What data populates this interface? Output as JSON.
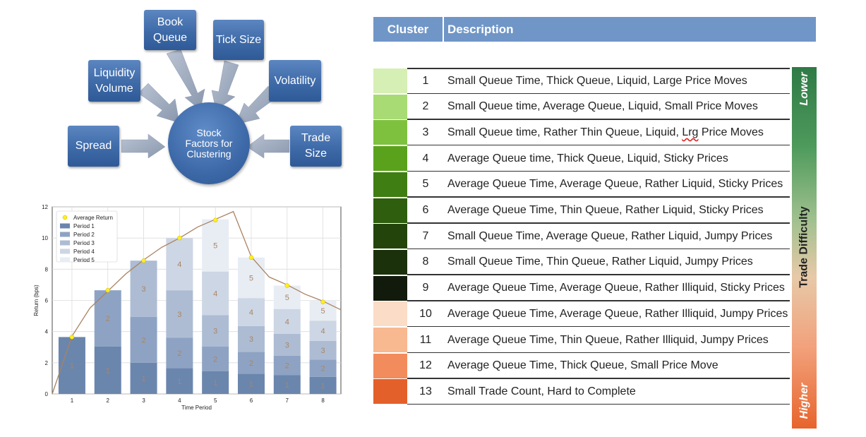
{
  "diagram": {
    "center": "Stock\nFactors for\nClustering",
    "factors": {
      "book_queue": "Book\nQueue",
      "tick_size": "Tick Size",
      "liquidity_volume": "Liquidity\nVolume",
      "volatility": "Volatility",
      "spread": "Spread",
      "trade_size": "Trade\nSize"
    }
  },
  "chart_data": {
    "type": "bar",
    "stacked": true,
    "categories": [
      "1",
      "2",
      "3",
      "4",
      "5",
      "6",
      "7",
      "8"
    ],
    "xlabel": "Time Period",
    "ylabel": "Return (bps)",
    "ylim": [
      0,
      12
    ],
    "yticks": [
      0,
      2,
      4,
      6,
      8,
      10,
      12
    ],
    "grid": true,
    "legend_position": "top-left",
    "series": [
      {
        "name": "Period 1",
        "label": "1",
        "color": "#6b86ad",
        "values": [
          3.65,
          3.05,
          2.0,
          1.65,
          1.45,
          1.3,
          1.2,
          1.1
        ]
      },
      {
        "name": "Period 2",
        "label": "2",
        "color": "#8ea3c3",
        "values": [
          0,
          3.6,
          2.95,
          1.95,
          1.6,
          1.4,
          1.25,
          1.1
        ]
      },
      {
        "name": "Period 3",
        "label": "3",
        "color": "#adbcd3",
        "values": [
          0,
          0,
          3.6,
          3.05,
          2.0,
          1.65,
          1.4,
          1.2
        ]
      },
      {
        "name": "Period 4",
        "label": "4",
        "color": "#cdd6e4",
        "values": [
          0,
          0,
          0,
          3.35,
          2.8,
          1.8,
          1.6,
          1.3
        ]
      },
      {
        "name": "Period 5",
        "label": "5",
        "color": "#e8edf4",
        "values": [
          0,
          0,
          0,
          0,
          3.35,
          2.6,
          1.5,
          1.3
        ]
      },
      {
        "name": "Average Return",
        "type": "line",
        "color": "#a98260",
        "marker_color": "#ffee22",
        "x": [
          0.45,
          1,
          1.5,
          2,
          2.5,
          3,
          3.5,
          4,
          4.5,
          5,
          5.5,
          6,
          6.5,
          7,
          7.5,
          8,
          8.5
        ],
        "values": [
          0,
          3.7,
          5.5,
          6.6,
          7.7,
          8.6,
          9.4,
          10.0,
          10.7,
          11.2,
          11.7,
          8.8,
          7.5,
          7.0,
          6.4,
          5.95,
          5.4
        ],
        "markers_x": [
          1,
          2,
          3,
          4,
          5,
          6,
          7,
          8
        ],
        "markers": [
          3.65,
          6.65,
          8.55,
          10.0,
          11.15,
          8.75,
          6.95,
          5.9
        ]
      }
    ]
  },
  "table": {
    "header_cluster": "Cluster",
    "header_description": "Description",
    "rows": [
      {
        "num": "1",
        "color": "#d6efb4",
        "desc": "Small Queue Time, Thick Queue, Liquid, Large Price Moves"
      },
      {
        "num": "2",
        "color": "#a8db74",
        "desc": "Small Queue time, Average Queue, Liquid, Small Price Moves"
      },
      {
        "num": "3",
        "color": "#7ec13e",
        "desc_pre": "Small Queue time, Rather Thin Queue, Liquid, ",
        "desc_mark": "Lrg",
        "desc_post": " Price Moves"
      },
      {
        "num": "4",
        "color": "#5aa21c",
        "desc": "Average Queue time, Thick Queue, Liquid, Sticky Prices"
      },
      {
        "num": "5",
        "color": "#3f7e12",
        "desc": "Average Queue Time, Average Queue, Rather Liquid, Sticky Prices"
      },
      {
        "num": "6",
        "color": "#2e5e0e",
        "desc": "Average Queue Time, Thin Queue, Rather Liquid, Sticky Prices"
      },
      {
        "num": "7",
        "color": "#23450c",
        "desc": "Small Queue Time, Average Queue, Rather Liquid, Jumpy Prices"
      },
      {
        "num": "8",
        "color": "#1b310c",
        "desc": "Small Queue Time, Thin Queue, Rather Liquid, Jumpy Prices"
      },
      {
        "num": "9",
        "color": "#121a0c",
        "desc": "Average Queue Time, Average Queue, Rather Illiquid, Sticky Prices"
      },
      {
        "num": "10",
        "color": "#fbdcc6",
        "desc": "Average Queue Time, Average Queue, Rather Illiquid, Jumpy Prices"
      },
      {
        "num": "11",
        "color": "#f8b890",
        "desc": "Average Queue Time, Thin Queue, Rather Illiquid, Jumpy Prices"
      },
      {
        "num": "12",
        "color": "#f28c5c",
        "desc": "Average Queue Time, Thick Queue, Small Price Move"
      },
      {
        "num": "13",
        "color": "#e4602a",
        "desc": "Small Trade Count, Hard to Complete"
      }
    ]
  },
  "difficulty": {
    "top": "Lower",
    "middle": "Trade Difficulty",
    "bottom": "Higher"
  }
}
